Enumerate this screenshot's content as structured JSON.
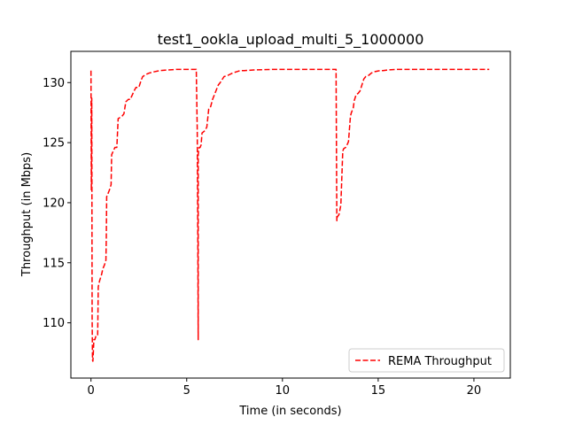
{
  "chart_data": {
    "type": "line",
    "title": "test1_ookla_upload_multi_5_1000000",
    "xlabel": "Time (in seconds)",
    "ylabel": "Throughput (in Mbps)",
    "xlim": [
      -1.05,
      21.9
    ],
    "ylim": [
      105.4,
      132.6
    ],
    "xticks": [
      0,
      5,
      10,
      15,
      20
    ],
    "yticks": [
      110,
      115,
      120,
      125,
      130
    ],
    "grid": false,
    "legend_position": "lower right",
    "series": [
      {
        "name": "REMA Throughput",
        "color": "#ff0000",
        "style": "dashed",
        "x": [
          0,
          0.02,
          0.04,
          0.05,
          0.06,
          0.08,
          0.1,
          0.12,
          0.15,
          0.2,
          0.28,
          0.35,
          0.38,
          0.45,
          0.55,
          0.62,
          0.7,
          0.78,
          0.8,
          0.82,
          0.95,
          1.05,
          1.08,
          1.25,
          1.35,
          1.42,
          1.62,
          1.72,
          1.82,
          1.95,
          2.05,
          2.25,
          2.35,
          2.5,
          2.62,
          2.7,
          2.9,
          3.05,
          3.3,
          3.6,
          4.0,
          4.5,
          5.0,
          5.3,
          5.5,
          5.55,
          5.58,
          5.6,
          5.6,
          5.62,
          5.65,
          5.7,
          5.75,
          5.8,
          5.95,
          6.05,
          6.15,
          6.25,
          6.35,
          6.55,
          6.65,
          6.75,
          6.95,
          7.15,
          7.4,
          7.6,
          7.8,
          8.0,
          8.5,
          9.5,
          11.0,
          12.0,
          12.8,
          12.84,
          12.86,
          12.9,
          12.95,
          13.05,
          13.15,
          13.2,
          13.3,
          13.4,
          13.45,
          13.55,
          13.6,
          13.7,
          13.75,
          13.85,
          13.95,
          14.05,
          14.15,
          14.25,
          14.35,
          14.5,
          14.65,
          14.8,
          14.95,
          15.1,
          15.25,
          15.5,
          16.0,
          17.0,
          18.0,
          19.0,
          20.0,
          20.8
        ],
        "y": [
          131.0,
          121.0,
          128.7,
          120.5,
          110.5,
          106.9,
          106.8,
          107.4,
          108.6,
          108.6,
          109.0,
          109.0,
          113.0,
          113.5,
          114.0,
          114.5,
          114.8,
          115.2,
          117.0,
          120.5,
          121.0,
          121.5,
          124.0,
          124.6,
          124.6,
          127.0,
          127.2,
          127.4,
          128.4,
          128.6,
          128.6,
          129.3,
          129.6,
          129.6,
          130.2,
          130.5,
          130.7,
          130.8,
          130.9,
          131.0,
          131.05,
          131.1,
          131.1,
          131.1,
          131.1,
          126.0,
          117.0,
          108.6,
          124.0,
          124.3,
          124.6,
          124.6,
          124.8,
          125.8,
          126.0,
          126.3,
          127.8,
          128.0,
          128.6,
          129.4,
          129.8,
          130.0,
          130.5,
          130.6,
          130.8,
          130.9,
          131.0,
          131.0,
          131.05,
          131.1,
          131.1,
          131.1,
          131.1,
          118.5,
          118.8,
          118.9,
          119.0,
          119.8,
          124.3,
          124.5,
          124.6,
          124.9,
          125.1,
          127.2,
          127.5,
          127.9,
          128.5,
          129.0,
          129.1,
          129.3,
          129.8,
          130.3,
          130.5,
          130.6,
          130.8,
          130.9,
          130.95,
          131.0,
          131.0,
          131.05,
          131.1,
          131.1,
          131.1,
          131.1,
          131.1,
          131.1
        ]
      }
    ]
  }
}
